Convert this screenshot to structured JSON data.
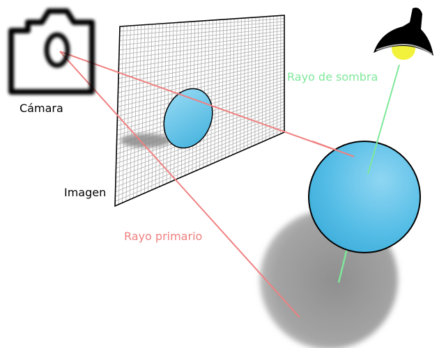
{
  "labels": {
    "camera": "Cámara",
    "image": "Imagen",
    "primary_ray": "Rayo primario",
    "shadow_ray": "Rayo de sombra"
  },
  "colors": {
    "primary_ray": "#f08080",
    "shadow_ray": "#7ee89a",
    "sphere": "#55bde6",
    "sphere_shadow": "#9a9a9a",
    "grid": "#b0b0b0",
    "lamp_shade": "#000000",
    "lamp_bulb": "#f2f23c",
    "camera": "#000000"
  },
  "icons": {
    "camera": "camera-icon",
    "lamp": "lamp-icon"
  }
}
